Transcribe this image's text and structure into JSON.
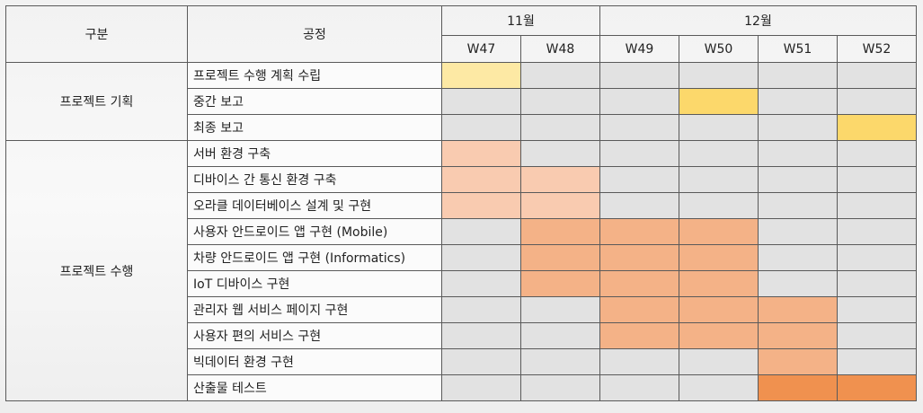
{
  "header": {
    "category": "구분",
    "process": "공정",
    "months": [
      "11월",
      "12월"
    ],
    "weeks": [
      "W47",
      "W48",
      "W49",
      "W50",
      "W51",
      "W52"
    ]
  },
  "groups": [
    {
      "name": "프로젝트 기획"
    },
    {
      "name": "프로젝트 수행"
    }
  ],
  "tasks": [
    {
      "label": "프로젝트 수행 계획 수립",
      "fills": [
        "c1",
        "",
        "",
        "",
        "",
        ""
      ]
    },
    {
      "label": "중간 보고",
      "fills": [
        "",
        "",
        "",
        "c2",
        "",
        ""
      ]
    },
    {
      "label": "최종 보고",
      "fills": [
        "",
        "",
        "",
        "",
        "",
        "c2"
      ]
    },
    {
      "label": "서버 환경 구축",
      "fills": [
        "c3",
        "",
        "",
        "",
        "",
        ""
      ]
    },
    {
      "label": "디바이스 간 통신 환경 구축",
      "fills": [
        "c3",
        "c3",
        "",
        "",
        "",
        ""
      ]
    },
    {
      "label": "오라클 데이터베이스 설계 및 구현",
      "fills": [
        "c3",
        "c3",
        "",
        "",
        "",
        ""
      ]
    },
    {
      "label": "사용자 안드로이드 앱 구현 (Mobile)",
      "fills": [
        "",
        "c4",
        "c4",
        "c4",
        "",
        ""
      ]
    },
    {
      "label": "차량 안드로이드 앱 구현 (Informatics)",
      "fills": [
        "",
        "c4",
        "c4",
        "c4",
        "",
        ""
      ]
    },
    {
      "label": "IoT 디바이스 구현",
      "fills": [
        "",
        "c4",
        "c4",
        "c4",
        "",
        ""
      ]
    },
    {
      "label": "관리자 웹 서비스 페이지 구현",
      "fills": [
        "",
        "",
        "c4",
        "c4",
        "c4",
        ""
      ]
    },
    {
      "label": "사용자 편의 서비스 구현",
      "fills": [
        "",
        "",
        "c4",
        "c4",
        "c4",
        ""
      ]
    },
    {
      "label": "빅데이터 환경 구현",
      "fills": [
        "",
        "",
        "",
        "",
        "c4",
        ""
      ]
    },
    {
      "label": "산출물 테스트",
      "fills": [
        "",
        "",
        "",
        "",
        "c5",
        "c5"
      ]
    }
  ],
  "colors": {
    "c1": "#fde9a4",
    "c2": "#fcd86b",
    "c3": "#f9cbb0",
    "c4": "#f4b287",
    "c5": "#f0914f",
    "empty": "#e2e2e2"
  }
}
